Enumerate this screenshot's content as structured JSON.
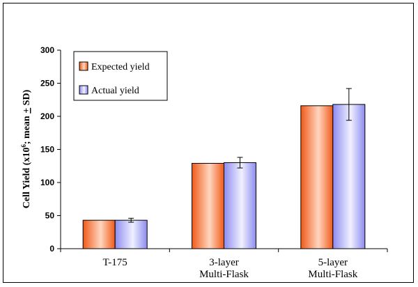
{
  "chart_data": {
    "type": "bar",
    "title": "",
    "xlabel": "",
    "ylabel": "Cell Yield (x10^6; mean + SD)",
    "ylabel_parts": {
      "prefix": "Cell Yield (x10",
      "sup": "6",
      "suffix": "; mean ",
      "pm": "+",
      "end": " SD)"
    },
    "categories": [
      {
        "line1": "T-175",
        "line2": ""
      },
      {
        "line1": "3-layer",
        "line2": "Multi-Flask"
      },
      {
        "line1": "5-layer",
        "line2": "Multi-Flask"
      }
    ],
    "ylim": [
      0,
      300
    ],
    "yticks": [
      0,
      50,
      100,
      150,
      200,
      250,
      300
    ],
    "grid": false,
    "legend_position": "top-left",
    "series": [
      {
        "name": "Expected yield",
        "values": [
          43,
          129,
          216
        ],
        "errors": [
          0,
          0,
          0
        ],
        "color_dark": "#f05a1a",
        "color_light": "#ffd6bf"
      },
      {
        "name": "Actual yield",
        "values": [
          43,
          130,
          218
        ],
        "errors": [
          3,
          8,
          24
        ],
        "color_dark": "#8c8cf0",
        "color_light": "#f0f0ff"
      }
    ]
  }
}
